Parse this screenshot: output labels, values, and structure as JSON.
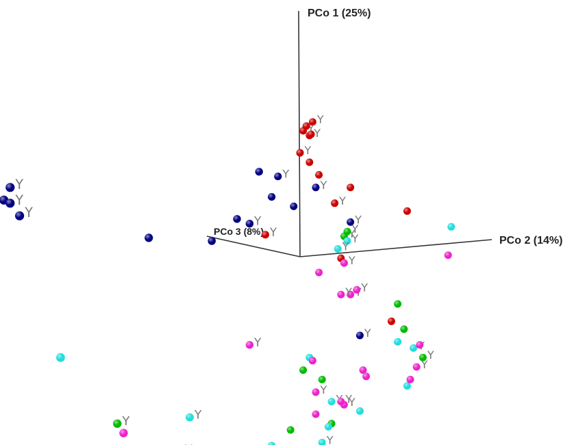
{
  "chart_data": {
    "type": "scatter",
    "projection": "3d",
    "title": "",
    "axes": {
      "pco1": "PCo 1 (25%)",
      "pco2": "PCo 2 (14%)",
      "pco3": "PCo 3 (8%)"
    },
    "marker_glyph": "Y",
    "grid": false,
    "legend": "none",
    "series": [
      {
        "color": "#cc0000",
        "points": [
          {
            "x": 0.4,
            "y": 4.28,
            "y_marked": true
          },
          {
            "x": 0.1,
            "y": 4.0,
            "y_marked": true
          },
          {
            "x": 0.2,
            "y": 4.15,
            "y_marked": false
          },
          {
            "x": 0.3,
            "y": 3.85,
            "y_marked": true
          },
          {
            "x": 0.35,
            "y": 3.89,
            "y_marked": false
          },
          {
            "x": 0.0,
            "y": 3.3,
            "y_marked": true
          },
          {
            "x": 0.3,
            "y": 3.0,
            "y_marked": false
          },
          {
            "x": 0.6,
            "y": 2.6,
            "y_marked": false
          },
          {
            "x": 1.6,
            "y": 2.2,
            "y_marked": false
          },
          {
            "x": 1.1,
            "y": 1.7,
            "y_marked": true
          },
          {
            "x": 3.4,
            "y": 1.45,
            "y_marked": false
          },
          {
            "x": -1.1,
            "y": 0.7,
            "y_marked": true
          },
          {
            "x": 1.3,
            "y": -0.05,
            "y_marked": false
          },
          {
            "x": 2.9,
            "y": -2.05,
            "y_marked": false
          }
        ]
      },
      {
        "color": "#000080",
        "points": [
          {
            "x": -1.3,
            "y": 2.7,
            "y_marked": false
          },
          {
            "x": -0.7,
            "y": 2.55,
            "y_marked": true
          },
          {
            "x": -0.9,
            "y": 1.9,
            "y_marked": false
          },
          {
            "x": 0.5,
            "y": 2.2,
            "y_marked": true
          },
          {
            "x": -0.2,
            "y": 1.6,
            "y_marked": false
          },
          {
            "x": -2.0,
            "y": 1.2,
            "y_marked": false
          },
          {
            "x": -1.6,
            "y": 1.05,
            "y_marked": true
          },
          {
            "x": 1.6,
            "y": 1.1,
            "y_marked": true
          },
          {
            "x": -2.8,
            "y": 0.5,
            "y_marked": false
          },
          {
            "x": -4.8,
            "y": 0.6,
            "y_marked": false
          },
          {
            "x": -9.2,
            "y": 2.2,
            "y_marked": true
          },
          {
            "x": -9.4,
            "y": 1.8,
            "y_marked": false
          },
          {
            "x": -9.2,
            "y": 1.7,
            "y_marked": true
          },
          {
            "x": -8.9,
            "y": 1.3,
            "y_marked": true
          },
          {
            "x": 1.9,
            "y": -2.5,
            "y_marked": true
          }
        ]
      },
      {
        "color": "#00bb00",
        "points": [
          {
            "x": 1.4,
            "y": 0.65,
            "y_marked": true
          },
          {
            "x": 1.5,
            "y": 0.8,
            "y_marked": true
          },
          {
            "x": 3.1,
            "y": -1.5,
            "y_marked": false
          },
          {
            "x": 3.3,
            "y": -2.3,
            "y_marked": false
          },
          {
            "x": 3.9,
            "y": -3.2,
            "y_marked": true
          },
          {
            "x": 0.1,
            "y": -3.6,
            "y_marked": false
          },
          {
            "x": 0.7,
            "y": -3.9,
            "y_marked": false
          },
          {
            "x": 1.0,
            "y": -5.3,
            "y_marked": false
          },
          {
            "x": -0.3,
            "y": -5.5,
            "y_marked": false
          },
          {
            "x": -5.8,
            "y": -5.3,
            "y_marked": true
          },
          {
            "x": -3.8,
            "y": -6.2,
            "y_marked": true
          },
          {
            "x": -2.8,
            "y": -6.4,
            "y_marked": true
          }
        ]
      },
      {
        "color": "#22dddd",
        "points": [
          {
            "x": 4.8,
            "y": 0.95,
            "y_marked": false
          },
          {
            "x": 1.5,
            "y": 0.5,
            "y_marked": true
          },
          {
            "x": 1.2,
            "y": 0.25,
            "y_marked": true
          },
          {
            "x": 3.6,
            "y": -2.9,
            "y_marked": true
          },
          {
            "x": 3.1,
            "y": -2.7,
            "y_marked": false
          },
          {
            "x": 0.3,
            "y": -3.2,
            "y_marked": false
          },
          {
            "x": 3.4,
            "y": -4.1,
            "y_marked": false
          },
          {
            "x": 1.0,
            "y": -4.6,
            "y_marked": true
          },
          {
            "x": 1.9,
            "y": -4.9,
            "y_marked": false
          },
          {
            "x": 0.9,
            "y": -5.4,
            "y_marked": false
          },
          {
            "x": -3.5,
            "y": -5.1,
            "y_marked": true
          },
          {
            "x": -1.7,
            "y": -6.3,
            "y_marked": false
          },
          {
            "x": -0.9,
            "y": -6.0,
            "y_marked": false
          },
          {
            "x": 0.7,
            "y": -5.9,
            "y_marked": true
          },
          {
            "x": -0.3,
            "y": -6.2,
            "y_marked": false
          },
          {
            "x": -7.6,
            "y": -3.2,
            "y_marked": false
          },
          {
            "x": -2.0,
            "y": -6.5,
            "y_marked": true
          }
        ]
      },
      {
        "color": "#ee22cc",
        "points": [
          {
            "x": 4.7,
            "y": 0.05,
            "y_marked": false
          },
          {
            "x": 1.4,
            "y": -0.2,
            "y_marked": true
          },
          {
            "x": 0.6,
            "y": -0.5,
            "y_marked": false
          },
          {
            "x": 1.6,
            "y": -1.2,
            "y_marked": true
          },
          {
            "x": 1.8,
            "y": -1.05,
            "y_marked": true
          },
          {
            "x": 1.3,
            "y": -1.2,
            "y_marked": true
          },
          {
            "x": 3.8,
            "y": -2.8,
            "y_marked": false
          },
          {
            "x": -1.6,
            "y": -2.8,
            "y_marked": true
          },
          {
            "x": 0.4,
            "y": -3.3,
            "y_marked": false
          },
          {
            "x": 2.0,
            "y": -3.6,
            "y_marked": false
          },
          {
            "x": 3.7,
            "y": -3.5,
            "y_marked": true
          },
          {
            "x": 2.1,
            "y": -3.8,
            "y_marked": false
          },
          {
            "x": 3.5,
            "y": -3.9,
            "y_marked": false
          },
          {
            "x": 0.5,
            "y": -4.3,
            "y_marked": true
          },
          {
            "x": 1.4,
            "y": -4.7,
            "y_marked": true
          },
          {
            "x": 0.5,
            "y": -5.0,
            "y_marked": false
          },
          {
            "x": -5.6,
            "y": -5.6,
            "y_marked": false
          },
          {
            "x": 1.3,
            "y": -4.6,
            "y_marked": true
          }
        ]
      }
    ]
  }
}
